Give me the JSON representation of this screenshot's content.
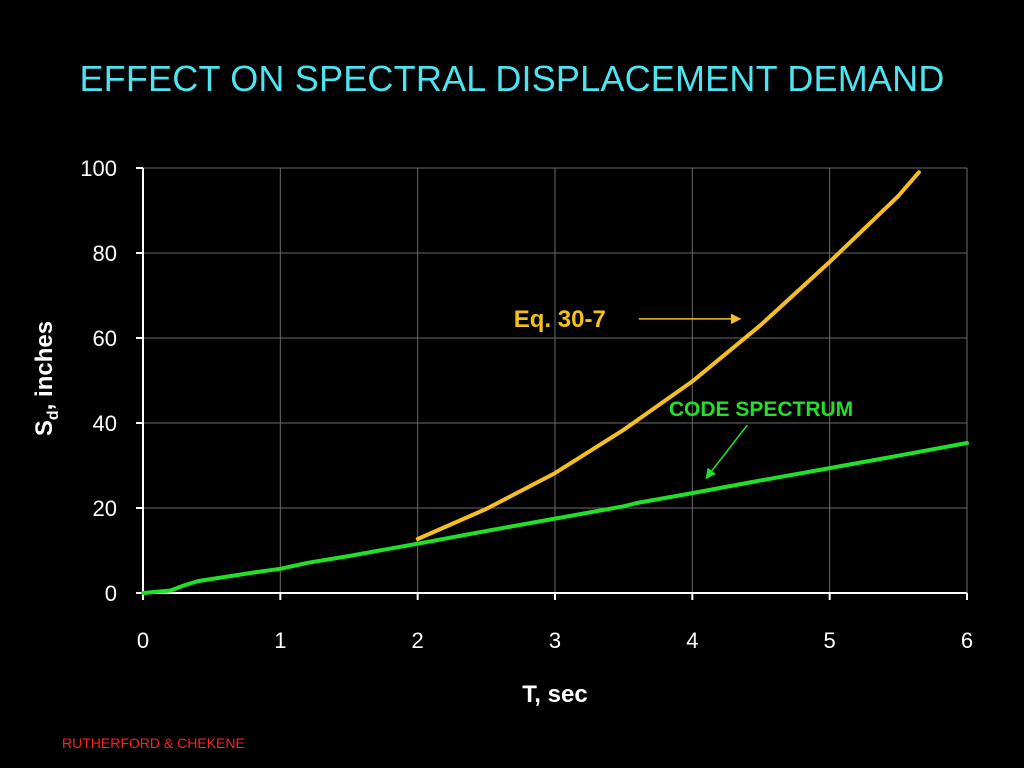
{
  "slide": {
    "title": "EFFECT ON SPECTRAL DISPLACEMENT DEMAND",
    "footer": "RUTHERFORD & CHEKENE"
  },
  "colors": {
    "background": "#000000",
    "title": "#4fe3f0",
    "footer": "#ff2020",
    "grid": "#6a6a6a",
    "axis": "#ffffff",
    "eq_series": "#f5c01e",
    "code_series": "#22e02a"
  },
  "chart_data": {
    "type": "line",
    "title": "",
    "xlabel": "T, sec",
    "ylabel": "Sd, inches",
    "ylabel_main": "S",
    "ylabel_sub": "d",
    "ylabel_rest": ", inches",
    "xlim": [
      0,
      6
    ],
    "ylim": [
      0,
      100
    ],
    "x_ticks": [
      "0",
      "1",
      "2",
      "3",
      "4",
      "5",
      "6"
    ],
    "y_ticks": [
      "0",
      "20",
      "40",
      "60",
      "80",
      "100"
    ],
    "grid": true,
    "legend": "none",
    "series": [
      {
        "name": "Eq. 30-7",
        "color": "#f5c01e",
        "points": [
          [
            2.0,
            12.7
          ],
          [
            2.5,
            19.8
          ],
          [
            3.0,
            28.2
          ],
          [
            3.5,
            38.4
          ],
          [
            4.0,
            49.8
          ],
          [
            4.5,
            63.1
          ],
          [
            5.0,
            77.9
          ],
          [
            5.5,
            93.4
          ],
          [
            5.65,
            99.0
          ]
        ]
      },
      {
        "name": "CODE SPECTRUM",
        "color": "#22e02a",
        "points": [
          [
            0.0,
            0.0
          ],
          [
            0.2,
            0.6
          ],
          [
            0.3,
            1.8
          ],
          [
            0.4,
            2.8
          ],
          [
            0.6,
            3.8
          ],
          [
            0.8,
            4.8
          ],
          [
            1.0,
            5.7
          ],
          [
            1.2,
            7.1
          ],
          [
            1.5,
            8.7
          ],
          [
            2.0,
            11.6
          ],
          [
            2.5,
            14.6
          ],
          [
            3.0,
            17.5
          ],
          [
            3.5,
            20.4
          ],
          [
            3.6,
            21.2
          ],
          [
            4.0,
            23.5
          ],
          [
            4.5,
            26.5
          ],
          [
            5.0,
            29.4
          ],
          [
            5.5,
            32.3
          ],
          [
            6.0,
            35.3
          ]
        ]
      }
    ],
    "annotations": [
      {
        "text": "Eq. 30-7",
        "color": "#f5c01e",
        "label_at": [
          2.7,
          64.5
        ],
        "arrow_to": [
          4.35,
          64.5
        ]
      },
      {
        "text": "CODE SPECTRUM",
        "color": "#22e02a",
        "label_at": [
          4.5,
          43.5
        ],
        "arrow_to": [
          4.1,
          27.0
        ]
      }
    ]
  }
}
